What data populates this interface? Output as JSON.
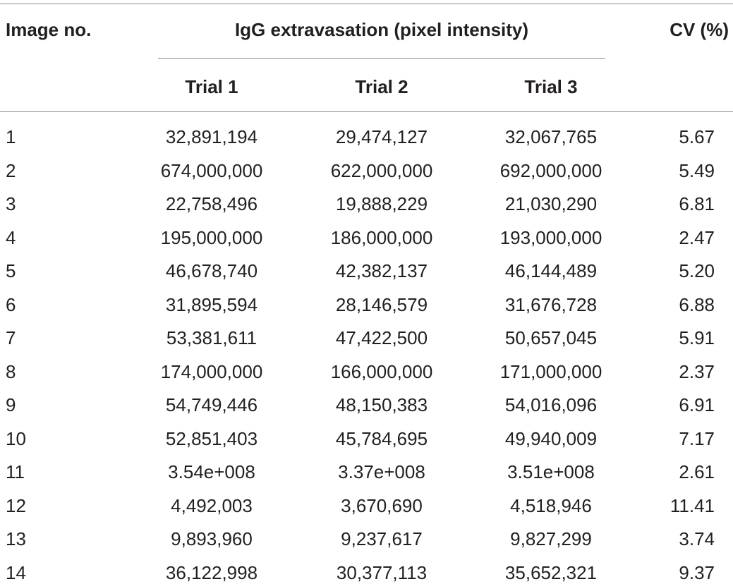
{
  "table": {
    "headers": {
      "image_no": "Image no.",
      "group": "IgG extravasation (pixel intensity)",
      "cv": "CV (%)",
      "trials": [
        "Trial 1",
        "Trial 2",
        "Trial 3"
      ]
    },
    "rows": [
      {
        "image_no": "1",
        "trial1": "32,891,194",
        "trial2": "29,474,127",
        "trial3": "32,067,765",
        "cv": "5.67"
      },
      {
        "image_no": "2",
        "trial1": "674,000,000",
        "trial2": "622,000,000",
        "trial3": "692,000,000",
        "cv": "5.49"
      },
      {
        "image_no": "3",
        "trial1": "22,758,496",
        "trial2": "19,888,229",
        "trial3": "21,030,290",
        "cv": "6.81"
      },
      {
        "image_no": "4",
        "trial1": "195,000,000",
        "trial2": "186,000,000",
        "trial3": "193,000,000",
        "cv": "2.47"
      },
      {
        "image_no": "5",
        "trial1": "46,678,740",
        "trial2": "42,382,137",
        "trial3": "46,144,489",
        "cv": "5.20"
      },
      {
        "image_no": "6",
        "trial1": "31,895,594",
        "trial2": "28,146,579",
        "trial3": "31,676,728",
        "cv": "6.88"
      },
      {
        "image_no": "7",
        "trial1": "53,381,611",
        "trial2": "47,422,500",
        "trial3": "50,657,045",
        "cv": "5.91"
      },
      {
        "image_no": "8",
        "trial1": "174,000,000",
        "trial2": "166,000,000",
        "trial3": "171,000,000",
        "cv": "2.37"
      },
      {
        "image_no": "9",
        "trial1": "54,749,446",
        "trial2": "48,150,383",
        "trial3": "54,016,096",
        "cv": "6.91"
      },
      {
        "image_no": "10",
        "trial1": "52,851,403",
        "trial2": "45,784,695",
        "trial3": "49,940,009",
        "cv": "7.17"
      },
      {
        "image_no": "11",
        "trial1": "3.54e+008",
        "trial2": "3.37e+008",
        "trial3": "3.51e+008",
        "cv": "2.61"
      },
      {
        "image_no": "12",
        "trial1": "4,492,003",
        "trial2": "3,670,690",
        "trial3": "4,518,946",
        "cv": "11.41"
      },
      {
        "image_no": "13",
        "trial1": "9,893,960",
        "trial2": "9,237,617",
        "trial3": "9,827,299",
        "cv": "3.74"
      },
      {
        "image_no": "14",
        "trial1": "36,122,998",
        "trial2": "30,377,113",
        "trial3": "35,652,321",
        "cv": "9.37"
      }
    ]
  }
}
